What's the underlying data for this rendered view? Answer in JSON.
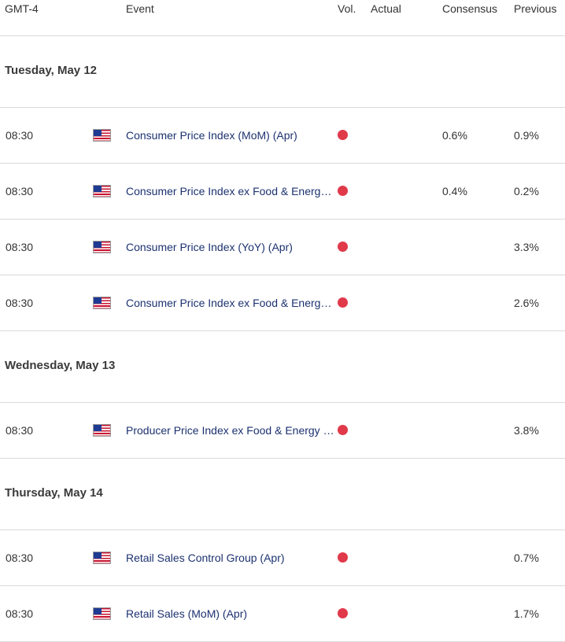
{
  "header": {
    "timezone": "GMT-4",
    "event": "Event",
    "vol": "Vol.",
    "actual": "Actual",
    "consensus": "Consensus",
    "previous": "Previous"
  },
  "colors": {
    "volatility_high": "#e0394a",
    "event_text": "#1c3270"
  },
  "days": [
    {
      "label": "Tuesday, May 12",
      "events": [
        {
          "time": "08:30",
          "flag_icon": "us-flag-icon",
          "event": "Consumer Price Index (MoM) (Apr)",
          "vol": "high",
          "actual": "",
          "consensus": "0.6%",
          "previous": "0.9%"
        },
        {
          "time": "08:30",
          "flag_icon": "us-flag-icon",
          "event": "Consumer Price Index ex Food & Energy (MoM) (Apr)",
          "vol": "high",
          "actual": "",
          "consensus": "0.4%",
          "previous": "0.2%"
        },
        {
          "time": "08:30",
          "flag_icon": "us-flag-icon",
          "event": "Consumer Price Index (YoY) (Apr)",
          "vol": "high",
          "actual": "",
          "consensus": "",
          "previous": "3.3%"
        },
        {
          "time": "08:30",
          "flag_icon": "us-flag-icon",
          "event": "Consumer Price Index ex Food & Energy (YoY) (Apr)",
          "vol": "high",
          "actual": "",
          "consensus": "",
          "previous": "2.6%"
        }
      ]
    },
    {
      "label": "Wednesday, May 13",
      "events": [
        {
          "time": "08:30",
          "flag_icon": "us-flag-icon",
          "event": "Producer Price Index ex Food & Energy (YoY) (Apr)",
          "vol": "high",
          "actual": "",
          "consensus": "",
          "previous": "3.8%"
        }
      ]
    },
    {
      "label": "Thursday, May 14",
      "events": [
        {
          "time": "08:30",
          "flag_icon": "us-flag-icon",
          "event": "Retail Sales Control Group (Apr)",
          "vol": "high",
          "actual": "",
          "consensus": "",
          "previous": "0.7%"
        },
        {
          "time": "08:30",
          "flag_icon": "us-flag-icon",
          "event": "Retail Sales (MoM) (Apr)",
          "vol": "high",
          "actual": "",
          "consensus": "",
          "previous": "1.7%"
        }
      ]
    }
  ]
}
